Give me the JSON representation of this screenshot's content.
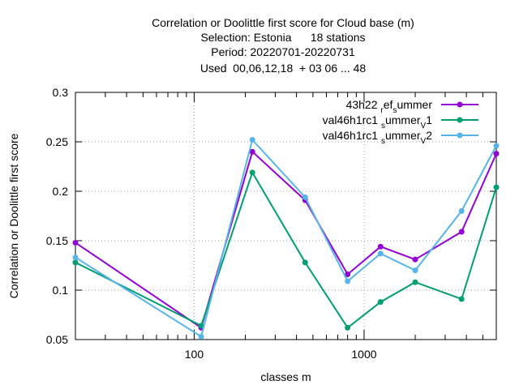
{
  "chart_data": {
    "type": "line",
    "title": [
      "Correlation or Doolittle first score  for Cloud base (m)",
      "Selection: Estonia      18 stations",
      "Period: 20220701-20220731",
      "Used  00,06,12,18  + 03 06 ... 48"
    ],
    "xlabel": "classes m",
    "ylabel": "Correlation or Doolittle first score",
    "x_scale": "log",
    "xlim": [
      20,
      6000
    ],
    "ylim": [
      0.05,
      0.3
    ],
    "x_ticks": [
      100,
      1000
    ],
    "x_tick_labels": [
      "100",
      "1000"
    ],
    "y_ticks": [
      0.05,
      0.1,
      0.15,
      0.2,
      0.25,
      0.3
    ],
    "y_tick_labels": [
      "0.05",
      "0.1",
      "0.15",
      "0.2",
      "0.25",
      "0.3"
    ],
    "grid": true,
    "legend_position": "top-right",
    "x": [
      20,
      110,
      220,
      450,
      800,
      1250,
      2000,
      3750,
      6000
    ],
    "series": [
      {
        "name": "43h22_ref_summer",
        "legend": {
          "base": "43h22 ",
          "sub1": "r",
          "mid": "ef",
          "sub2": "s",
          "tail": "ummer"
        },
        "color": "#9400d3",
        "values": [
          0.148,
          0.062,
          0.24,
          0.191,
          0.116,
          0.144,
          0.131,
          0.159,
          0.238
        ]
      },
      {
        "name": "val46h1rc1_summer_v1",
        "legend": {
          "base": "val46h1rc1 ",
          "sub1": "s",
          "mid": "ummer",
          "sub2": "V",
          "tail": "1"
        },
        "color": "#009e73",
        "values": [
          0.128,
          0.064,
          0.219,
          0.128,
          0.062,
          0.088,
          0.108,
          0.091,
          0.204
        ]
      },
      {
        "name": "val46h1rc1_summer_v2",
        "legend": {
          "base": "val46h1rc1 ",
          "sub1": "s",
          "mid": "ummer",
          "sub2": "V",
          "tail": "2"
        },
        "color": "#56b4e9",
        "values": [
          0.133,
          0.053,
          0.252,
          0.194,
          0.109,
          0.137,
          0.12,
          0.18,
          0.246
        ]
      }
    ]
  }
}
